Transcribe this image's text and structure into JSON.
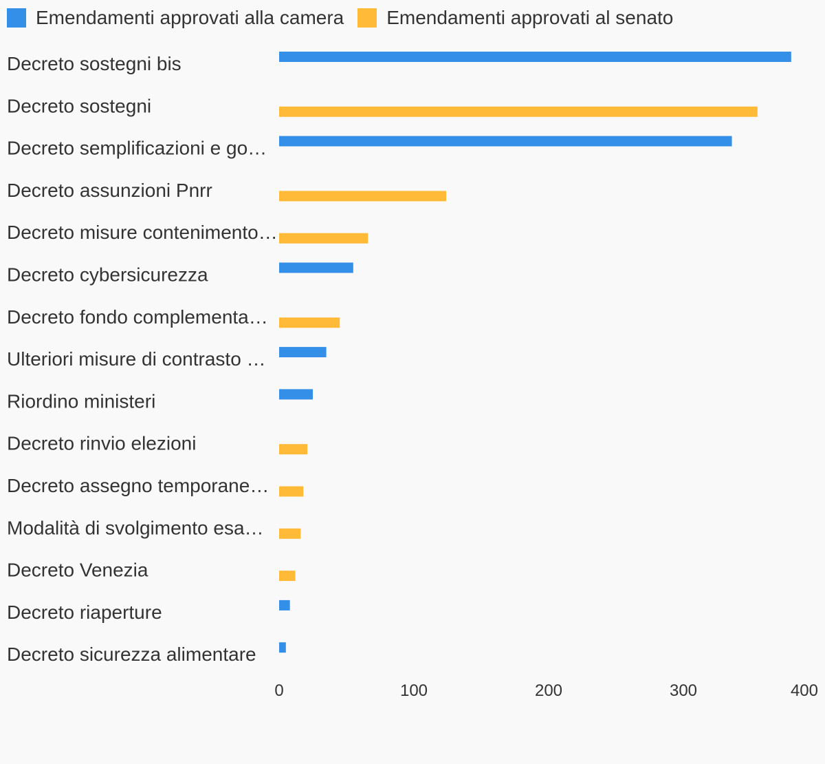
{
  "chart_data": {
    "type": "bar",
    "orientation": "horizontal",
    "categories": [
      "Decreto sostegni bis",
      "Decreto sostegni",
      "Decreto semplificazioni e go…",
      "Decreto assunzioni Pnrr",
      "Decreto misure contenimentо…",
      "Decreto cybersicurezza",
      "Decreto fondo complementa…",
      "Ulteriori misure di contrasto …",
      "Riordino ministeri",
      "Decreto rinvio elezioni",
      "Decreto assegno temporane…",
      "Modalità di svolgimento esa…",
      "Decreto Venezia",
      "Decreto riaperture",
      "Decreto sicurezza alimentare"
    ],
    "series": [
      {
        "name": "Emendamenti approvati alla camera",
        "color": "#348fe8",
        "values": [
          380,
          0,
          336,
          0,
          0,
          55,
          0,
          35,
          25,
          0,
          0,
          0,
          0,
          8,
          5
        ]
      },
      {
        "name": "Emendamenti approvati al senato",
        "color": "#ffba38",
        "values": [
          0,
          355,
          0,
          124,
          66,
          0,
          45,
          0,
          0,
          21,
          18,
          16,
          12,
          0,
          0
        ]
      }
    ],
    "x_ticks": [
      "0",
      "100",
      "200",
      "300",
      "400"
    ],
    "xlim": [
      0,
      400
    ],
    "xlabel": "",
    "ylabel": "",
    "grid": false,
    "legend_position": "top-left"
  }
}
